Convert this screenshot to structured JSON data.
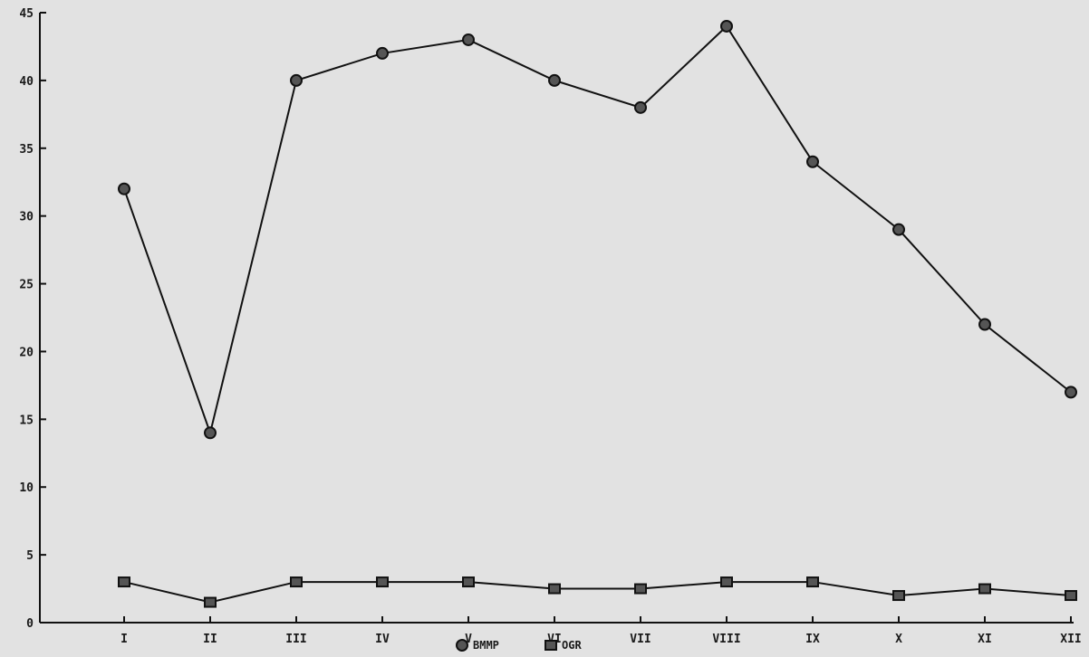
{
  "chart_data": {
    "type": "line",
    "categories": [
      "I",
      "II",
      "III",
      "IV",
      "V",
      "VI",
      "VII",
      "VIII",
      "IX",
      "X",
      "XI",
      "XII"
    ],
    "series": [
      {
        "name": "BMMP",
        "marker": "circle",
        "values": [
          32,
          14,
          40,
          42,
          43,
          40,
          38,
          44,
          34,
          29,
          22,
          17
        ]
      },
      {
        "name": "OGR",
        "marker": "square",
        "values": [
          3,
          1.5,
          3,
          3,
          3,
          2.5,
          2.5,
          3,
          3,
          2,
          2.5,
          2
        ]
      }
    ],
    "ylim": [
      0,
      45
    ],
    "yticks": [
      0,
      5,
      10,
      15,
      20,
      25,
      30,
      35,
      40,
      45
    ],
    "ytick_labels": [
      "0",
      "5",
      "10",
      "15",
      "20",
      "25",
      "30",
      "35",
      "40",
      "45"
    ],
    "title": "",
    "xlabel": "",
    "ylabel": "",
    "grid": false,
    "legend_position": "bottom-center",
    "colors": {
      "background": "#e2e2e2",
      "ink": "#111111",
      "marker_fill": "#555555"
    }
  }
}
